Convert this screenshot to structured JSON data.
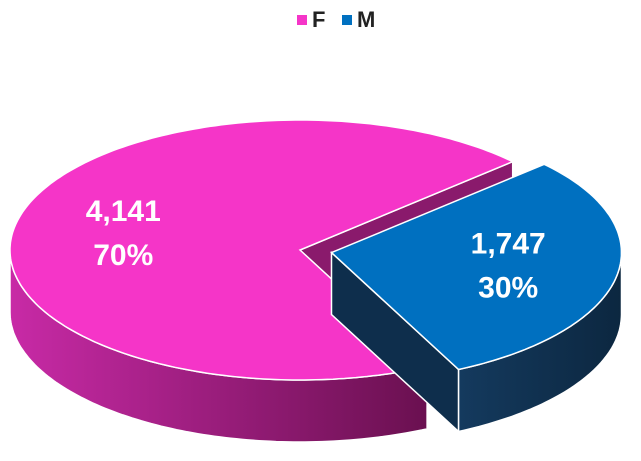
{
  "chart_data": {
    "type": "pie",
    "categories": [
      "F",
      "M"
    ],
    "values": [
      4141,
      1747
    ],
    "value_labels": [
      "4,141",
      "1,747"
    ],
    "percents": [
      70,
      30
    ],
    "percent_labels": [
      "70%",
      "30%"
    ],
    "colors": [
      "#f535c8",
      "#0070c0"
    ],
    "legend": "top"
  }
}
